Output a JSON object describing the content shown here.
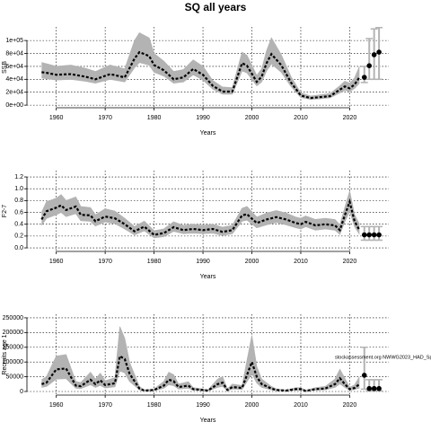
{
  "title": "SQ all years",
  "chart_data": [
    {
      "type": "line",
      "xlabel": "Years",
      "ylabel": "SSB",
      "color": "#000000",
      "band_color": "#b3b3b3",
      "grid": true,
      "xlim": [
        1954,
        2028
      ],
      "xticks": [
        1960,
        1970,
        1980,
        1990,
        2000,
        2010,
        2020
      ],
      "ylim": [
        -4000,
        121000
      ],
      "yticks": [
        {
          "value": 0,
          "label": "0e+00"
        },
        {
          "value": 20000,
          "label": "2e+04"
        },
        {
          "value": 40000,
          "label": "4e+04"
        },
        {
          "value": 60000,
          "label": "6e+04"
        },
        {
          "value": 80000,
          "label": "8e+04"
        },
        {
          "value": 100000,
          "label": "1e+05"
        }
      ],
      "x": [
        1957,
        1958,
        1960,
        1963,
        1966,
        1968,
        1971,
        1974,
        1976,
        1977,
        1979,
        1980,
        1982,
        1984,
        1986,
        1988,
        1990,
        1992,
        1994,
        1996,
        1998,
        1999,
        2001,
        2002,
        2003,
        2004,
        2006,
        2008,
        2010,
        2012,
        2014,
        2016,
        2018,
        2019,
        2020,
        2021,
        2022
      ],
      "values": [
        51000,
        50000,
        47000,
        48000,
        44000,
        40000,
        48000,
        43000,
        72000,
        82000,
        76000,
        62000,
        54000,
        40000,
        43000,
        56000,
        47000,
        30000,
        21000,
        21000,
        65000,
        61000,
        36000,
        44000,
        65000,
        79000,
        62000,
        35000,
        15000,
        11000,
        12500,
        14000,
        24000,
        29000,
        26000,
        32000,
        43000
      ],
      "lower": [
        42000,
        41000,
        39000,
        40000,
        37000,
        34000,
        40000,
        36000,
        58000,
        66000,
        62000,
        51000,
        45000,
        34000,
        36000,
        47000,
        39000,
        25000,
        17000,
        17000,
        53000,
        50000,
        30000,
        36000,
        53000,
        64000,
        51000,
        29000,
        12000,
        9000,
        10000,
        11500,
        19000,
        23000,
        21000,
        26000,
        34000
      ],
      "upper": [
        66000,
        64000,
        60000,
        62000,
        57000,
        52000,
        62000,
        56000,
        100000,
        112000,
        104000,
        80000,
        68000,
        52000,
        55000,
        70000,
        60000,
        38000,
        28000,
        27000,
        82000,
        77000,
        46000,
        56000,
        84000,
        104000,
        78000,
        44000,
        19000,
        14000,
        16000,
        18000,
        30000,
        37000,
        34000,
        42000,
        60000
      ],
      "forecast": {
        "x": [
          2023,
          2024,
          2025,
          2026
        ],
        "values": [
          43000,
          61000,
          78000,
          82000
        ],
        "lower": [
          35000,
          40000,
          40000,
          40000
        ],
        "upper": [
          60000,
          103000,
          118000,
          120000
        ]
      }
    },
    {
      "type": "line",
      "xlabel": "Years",
      "ylabel": "F2-7",
      "color": "#000000",
      "band_color": "#b3b3b3",
      "grid": true,
      "xlim": [
        1954,
        2028
      ],
      "xticks": [
        1960,
        1970,
        1980,
        1990,
        2000,
        2010,
        2020
      ],
      "ylim": [
        -0.06,
        1.307
      ],
      "yticks": [
        {
          "value": 0,
          "label": "0.0"
        },
        0.2,
        0.4,
        0.6,
        0.8,
        {
          "value": 1,
          "label": "1.0"
        },
        1.2
      ],
      "x": [
        1957,
        1958,
        1960,
        1961,
        1962,
        1964,
        1965,
        1967,
        1968,
        1970,
        1972,
        1974,
        1976,
        1978,
        1980,
        1982,
        1984,
        1986,
        1988,
        1990,
        1992,
        1994,
        1996,
        1998,
        1999,
        2001,
        2003,
        2005,
        2007,
        2009,
        2010,
        2011,
        2013,
        2015,
        2017,
        2018,
        2019,
        2020,
        2021,
        2022
      ],
      "values": [
        0.48,
        0.62,
        0.68,
        0.72,
        0.64,
        0.7,
        0.56,
        0.55,
        0.45,
        0.53,
        0.5,
        0.4,
        0.28,
        0.36,
        0.22,
        0.25,
        0.35,
        0.3,
        0.32,
        0.3,
        0.32,
        0.27,
        0.3,
        0.55,
        0.57,
        0.42,
        0.48,
        0.52,
        0.48,
        0.42,
        0.4,
        0.44,
        0.38,
        0.4,
        0.38,
        0.3,
        0.55,
        0.78,
        0.45,
        0.3
      ],
      "lower": [
        0.38,
        0.5,
        0.56,
        0.6,
        0.53,
        0.58,
        0.46,
        0.45,
        0.37,
        0.44,
        0.41,
        0.32,
        0.22,
        0.29,
        0.17,
        0.19,
        0.28,
        0.24,
        0.25,
        0.24,
        0.25,
        0.21,
        0.24,
        0.45,
        0.47,
        0.34,
        0.39,
        0.43,
        0.39,
        0.34,
        0.32,
        0.36,
        0.3,
        0.32,
        0.3,
        0.23,
        0.44,
        0.62,
        0.36,
        0.23
      ],
      "upper": [
        0.6,
        0.78,
        0.84,
        0.9,
        0.8,
        0.86,
        0.7,
        0.68,
        0.56,
        0.66,
        0.62,
        0.5,
        0.36,
        0.45,
        0.29,
        0.32,
        0.44,
        0.38,
        0.4,
        0.38,
        0.4,
        0.35,
        0.38,
        0.67,
        0.7,
        0.52,
        0.59,
        0.63,
        0.59,
        0.52,
        0.5,
        0.54,
        0.48,
        0.5,
        0.48,
        0.39,
        0.68,
        0.96,
        0.56,
        0.4
      ],
      "forecast": {
        "x": [
          2023,
          2024,
          2025,
          2026
        ],
        "values": [
          0.22,
          0.22,
          0.22,
          0.22
        ],
        "lower": [
          0.13,
          0.13,
          0.13,
          0.13
        ],
        "upper": [
          0.36,
          0.36,
          0.36,
          0.36
        ]
      }
    },
    {
      "type": "line",
      "xlabel": "Years",
      "ylabel": "Recruits age 1",
      "color": "#000000",
      "band_color": "#b3b3b3",
      "grid": true,
      "annotation": "stockassessment.org NWWG2023_HAD_Sp",
      "xlim": [
        1954,
        2028
      ],
      "xticks": [
        1960,
        1970,
        1980,
        1990,
        2000,
        2010,
        2020
      ],
      "ylim": [
        -12200,
        262000
      ],
      "yticks": [
        0,
        50000,
        100000,
        150000,
        200000,
        250000
      ],
      "x": [
        1957,
        1958,
        1960,
        1962,
        1964,
        1965,
        1967,
        1968,
        1969,
        1970,
        1972,
        1973,
        1974,
        1975,
        1977,
        1978,
        1980,
        1982,
        1983,
        1984,
        1985,
        1987,
        1988,
        1990,
        1991,
        1993,
        1994,
        1995,
        1996,
        1998,
        2000,
        2001,
        2002,
        2004,
        2005,
        2007,
        2009,
        2010,
        2011,
        2013,
        2015,
        2017,
        2018,
        2019,
        2020,
        2021,
        2022
      ],
      "values": [
        25000,
        30000,
        75000,
        78000,
        20000,
        18000,
        40000,
        25000,
        38000,
        22000,
        28000,
        120000,
        110000,
        60000,
        10000,
        3000,
        5000,
        20000,
        40000,
        35000,
        15000,
        20000,
        8000,
        5000,
        3000,
        25000,
        30000,
        5000,
        15000,
        12000,
        100000,
        50000,
        25000,
        10000,
        5000,
        3000,
        8000,
        8000,
        2000,
        8000,
        10000,
        25000,
        45000,
        25000,
        8000,
        12000,
        25000
      ],
      "lower": [
        14000,
        17000,
        42000,
        44000,
        11000,
        10000,
        23000,
        14000,
        21000,
        12000,
        16000,
        70000,
        63000,
        34000,
        5500,
        1500,
        2800,
        11000,
        23000,
        20000,
        8500,
        11000,
        4500,
        2800,
        1600,
        14000,
        17000,
        2800,
        8500,
        6800,
        60000,
        29000,
        14000,
        5600,
        2800,
        1600,
        4500,
        4500,
        1100,
        4500,
        5600,
        14000,
        26000,
        14000,
        4500,
        6800,
        12000
      ],
      "upper": [
        40000,
        50000,
        120000,
        125000,
        34000,
        30000,
        65000,
        42000,
        62000,
        36000,
        47000,
        220000,
        180000,
        98000,
        17000,
        5000,
        8500,
        34000,
        65000,
        57000,
        25000,
        33000,
        13000,
        8500,
        5000,
        42000,
        50000,
        8500,
        25000,
        20000,
        190000,
        84000,
        42000,
        17000,
        8500,
        5000,
        13000,
        13000,
        3500,
        13000,
        17000,
        42000,
        75000,
        45000,
        14000,
        22000,
        50000
      ],
      "forecast": {
        "x": [
          2023,
          2024,
          2025,
          2026
        ],
        "values": [
          55000,
          10000,
          10000,
          10000
        ],
        "lower": [
          8000,
          2000,
          2000,
          2000
        ],
        "upper": [
          150000,
          40000,
          40000,
          40000
        ]
      }
    }
  ]
}
